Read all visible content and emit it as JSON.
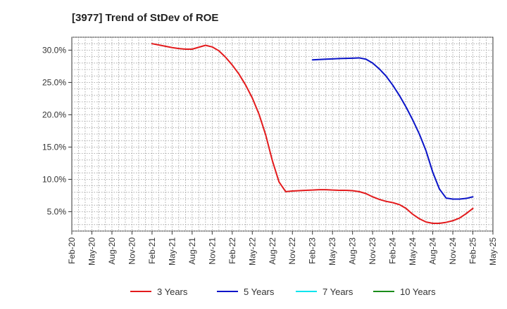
{
  "chart_data": {
    "type": "line",
    "title": "[3977]  Trend of StDev of ROE",
    "xlabel": "",
    "ylabel": "",
    "x_tick_labels": [
      "Feb-20",
      "May-20",
      "Aug-20",
      "Nov-20",
      "Feb-21",
      "May-21",
      "Aug-21",
      "Nov-21",
      "Feb-22",
      "May-22",
      "Aug-22",
      "Nov-22",
      "Feb-23",
      "May-23",
      "Aug-23",
      "Nov-23",
      "Feb-24",
      "May-24",
      "Aug-24",
      "Nov-24",
      "Feb-25",
      "May-25"
    ],
    "y_tick_labels": [
      "5.0%",
      "10.0%",
      "15.0%",
      "20.0%",
      "25.0%",
      "30.0%"
    ],
    "y_ticks": [
      5,
      10,
      15,
      20,
      25,
      30
    ],
    "ylim": [
      2,
      32
    ],
    "grid": true,
    "legend_position": "bottom",
    "series": [
      {
        "name": "3 Years",
        "color": "#e31a1c",
        "points": [
          [
            "Feb-21",
            31.0
          ],
          [
            "Mar-21",
            30.8
          ],
          [
            "Apr-21",
            30.6
          ],
          [
            "May-21",
            30.4
          ],
          [
            "Jun-21",
            30.25
          ],
          [
            "Jul-21",
            30.15
          ],
          [
            "Aug-21",
            30.15
          ],
          [
            "Sep-21",
            30.45
          ],
          [
            "Oct-21",
            30.75
          ],
          [
            "Nov-21",
            30.5
          ],
          [
            "Dec-21",
            29.9
          ],
          [
            "Jan-22",
            28.9
          ],
          [
            "Feb-22",
            27.7
          ],
          [
            "Mar-22",
            26.3
          ],
          [
            "Apr-22",
            24.6
          ],
          [
            "May-22",
            22.6
          ],
          [
            "Jun-22",
            20.1
          ],
          [
            "Jul-22",
            16.9
          ],
          [
            "Aug-22",
            12.9
          ],
          [
            "Sep-22",
            9.6
          ],
          [
            "Oct-22",
            8.1
          ],
          [
            "Nov-22",
            8.2
          ],
          [
            "Dec-22",
            8.25
          ],
          [
            "Jan-23",
            8.3
          ],
          [
            "Feb-23",
            8.35
          ],
          [
            "Mar-23",
            8.4
          ],
          [
            "Apr-23",
            8.4
          ],
          [
            "May-23",
            8.35
          ],
          [
            "Jun-23",
            8.3
          ],
          [
            "Jul-23",
            8.3
          ],
          [
            "Aug-23",
            8.25
          ],
          [
            "Sep-23",
            8.1
          ],
          [
            "Oct-23",
            7.8
          ],
          [
            "Nov-23",
            7.3
          ],
          [
            "Dec-23",
            6.9
          ],
          [
            "Jan-24",
            6.6
          ],
          [
            "Feb-24",
            6.4
          ],
          [
            "Mar-24",
            6.1
          ],
          [
            "Apr-24",
            5.5
          ],
          [
            "May-24",
            4.6
          ],
          [
            "Jun-24",
            3.9
          ],
          [
            "Jul-24",
            3.4
          ],
          [
            "Aug-24",
            3.2
          ],
          [
            "Sep-24",
            3.2
          ],
          [
            "Oct-24",
            3.35
          ],
          [
            "Nov-24",
            3.6
          ],
          [
            "Dec-24",
            4.0
          ],
          [
            "Jan-25",
            4.7
          ],
          [
            "Feb-25",
            5.5
          ]
        ]
      },
      {
        "name": "5 Years",
        "color": "#0a14c8",
        "points": [
          [
            "Feb-23",
            28.5
          ],
          [
            "Mar-23",
            28.55
          ],
          [
            "Apr-23",
            28.6
          ],
          [
            "May-23",
            28.65
          ],
          [
            "Jun-23",
            28.7
          ],
          [
            "Jul-23",
            28.72
          ],
          [
            "Aug-23",
            28.75
          ],
          [
            "Sep-23",
            28.8
          ],
          [
            "Oct-23",
            28.6
          ],
          [
            "Nov-23",
            28.0
          ],
          [
            "Dec-23",
            27.1
          ],
          [
            "Jan-24",
            26.0
          ],
          [
            "Feb-24",
            24.6
          ],
          [
            "Mar-24",
            23.0
          ],
          [
            "Apr-24",
            21.2
          ],
          [
            "May-24",
            19.2
          ],
          [
            "Jun-24",
            17.0
          ],
          [
            "Jul-24",
            14.4
          ],
          [
            "Aug-24",
            11.1
          ],
          [
            "Sep-24",
            8.5
          ],
          [
            "Oct-24",
            7.1
          ],
          [
            "Nov-24",
            6.95
          ],
          [
            "Dec-24",
            6.95
          ],
          [
            "Jan-25",
            7.05
          ],
          [
            "Feb-25",
            7.3
          ]
        ]
      },
      {
        "name": "7 Years",
        "color": "#00e5ee",
        "points": []
      },
      {
        "name": "10 Years",
        "color": "#1a8c1a",
        "points": []
      }
    ]
  }
}
